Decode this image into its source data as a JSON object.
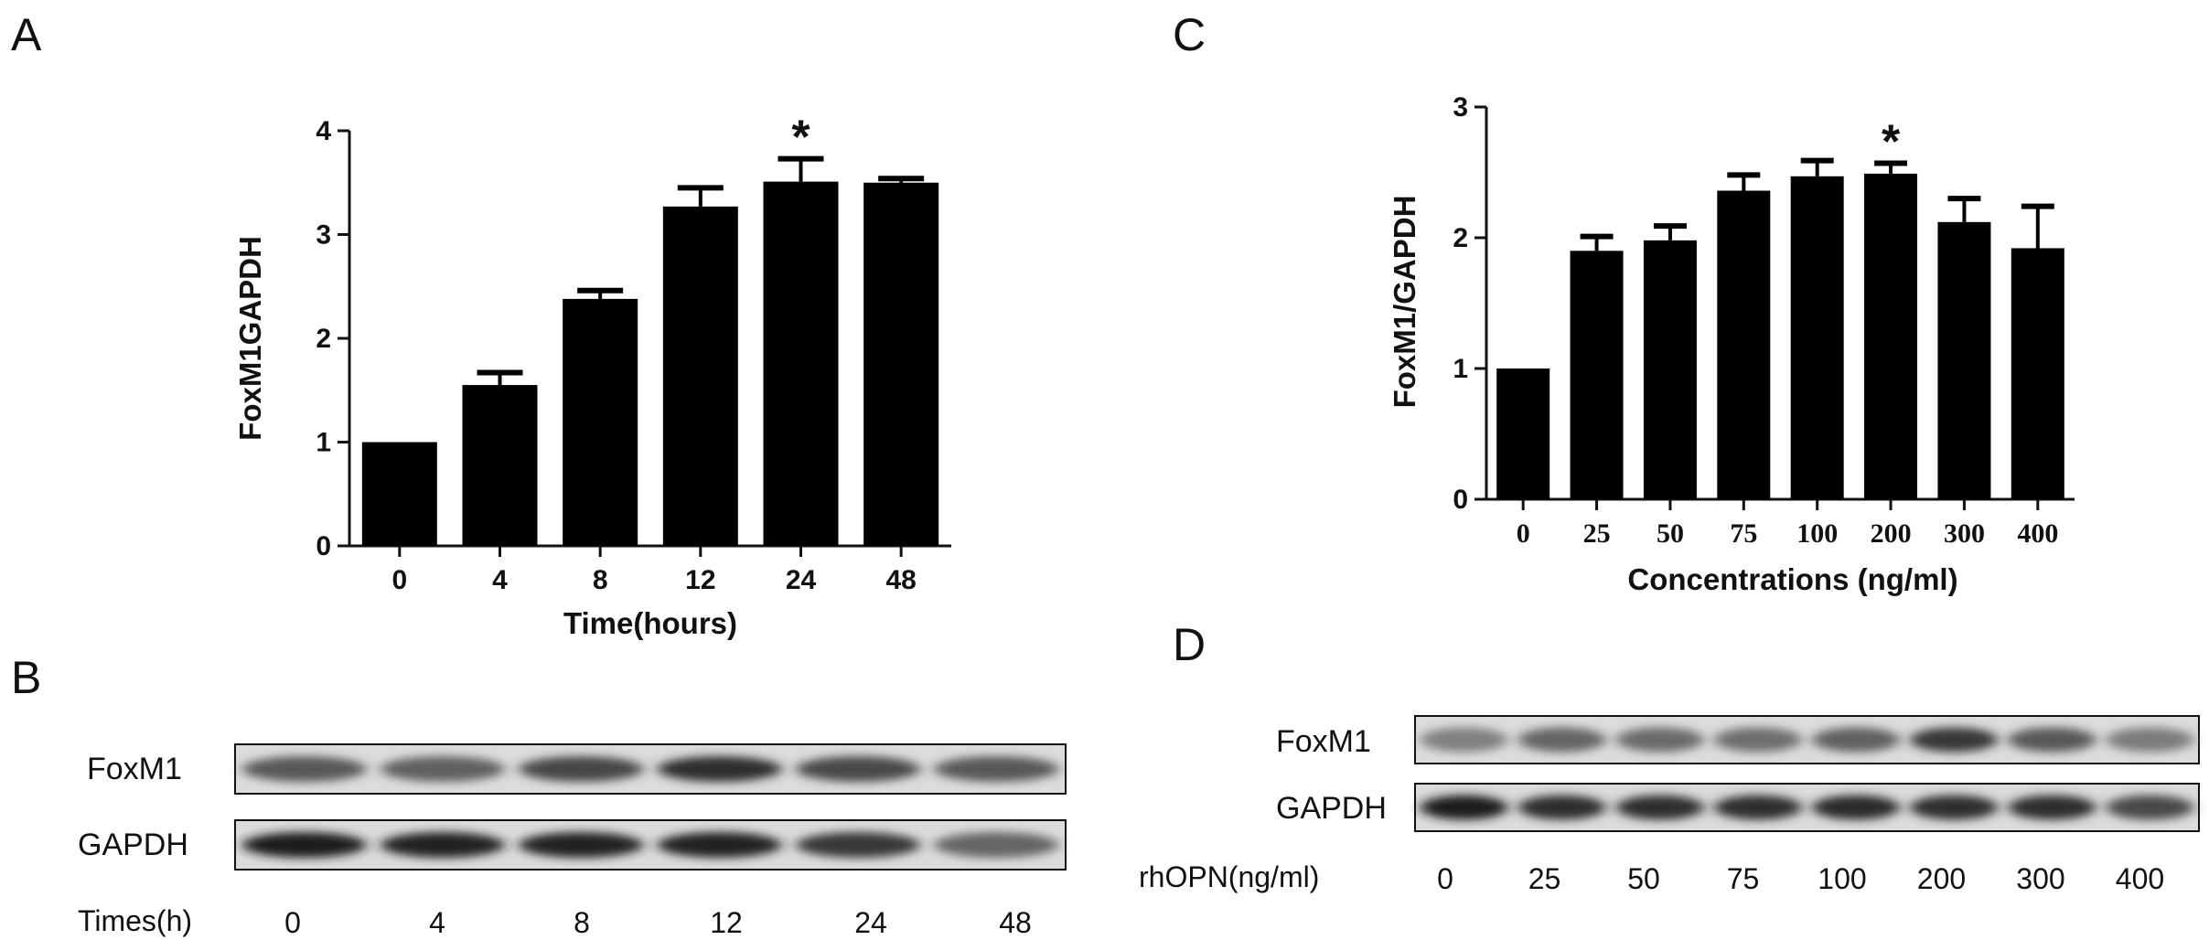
{
  "panels": {
    "A": "A",
    "B": "B",
    "C": "C",
    "D": "D"
  },
  "chart_data": [
    {
      "type": "bar",
      "panel": "A",
      "categories": [
        "0",
        "4",
        "8",
        "12",
        "24",
        "48"
      ],
      "values": [
        1.0,
        1.55,
        2.38,
        3.27,
        3.51,
        3.5
      ],
      "errors": [
        0.0,
        0.12,
        0.08,
        0.18,
        0.22,
        0.04
      ],
      "significant": [
        false,
        false,
        false,
        false,
        true,
        false
      ],
      "significance_marker": "*",
      "title": "",
      "xlabel": "Time(hours)",
      "ylabel": "FoxM1GAPDH",
      "ylim": [
        0,
        4
      ],
      "yticks": [
        "0",
        "1",
        "2",
        "3",
        "4"
      ],
      "grid": false,
      "bar_color": "#000000"
    },
    {
      "type": "bar",
      "panel": "C",
      "categories": [
        "0",
        "25",
        "50",
        "75",
        "100",
        "200",
        "300",
        "400"
      ],
      "values": [
        1.0,
        1.9,
        1.98,
        2.36,
        2.47,
        2.49,
        2.12,
        1.92
      ],
      "errors": [
        0.0,
        0.11,
        0.11,
        0.12,
        0.12,
        0.08,
        0.18,
        0.32
      ],
      "significant": [
        false,
        false,
        false,
        false,
        false,
        true,
        false,
        false
      ],
      "significance_marker": "*",
      "title": "",
      "xlabel": "Concentrations (ng/ml)",
      "ylabel": "FoxM1/GAPDH",
      "ylim": [
        0,
        3
      ],
      "yticks": [
        "0",
        "1",
        "2",
        "3"
      ],
      "grid": false,
      "bar_color": "#000000"
    }
  ],
  "blots": {
    "B": {
      "rows": [
        "FoxM1",
        "GAPDH"
      ],
      "lane_caption": "Times(h)",
      "lanes": [
        "0",
        "4",
        "8",
        "12",
        "24",
        "48"
      ],
      "foxm1_intensity": [
        0.62,
        0.58,
        0.72,
        0.85,
        0.7,
        0.62
      ],
      "gapdh_intensity": [
        0.95,
        0.92,
        0.92,
        0.92,
        0.8,
        0.55
      ]
    },
    "D": {
      "rows": [
        "FoxM1",
        "GAPDH"
      ],
      "lane_caption": "rhOPN(ng/ml)",
      "lanes": [
        "0",
        "25",
        "50",
        "75",
        "100",
        "200",
        "300",
        "400"
      ],
      "foxm1_intensity": [
        0.4,
        0.55,
        0.52,
        0.5,
        0.58,
        0.8,
        0.62,
        0.42
      ],
      "gapdh_intensity": [
        0.95,
        0.85,
        0.85,
        0.85,
        0.88,
        0.85,
        0.85,
        0.7
      ]
    }
  }
}
